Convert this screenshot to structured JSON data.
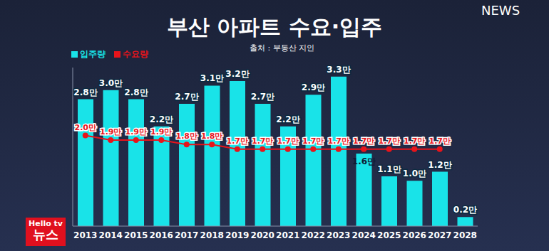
{
  "chart_data": {
    "type": "bar",
    "title": "부산 아파트 수요·입주",
    "subtitle": "출처 : 부동산 지인",
    "categories": [
      "2013",
      "2014",
      "2015",
      "2016",
      "2017",
      "2018",
      "2019",
      "2020",
      "2021",
      "2022",
      "2023",
      "2024",
      "2025",
      "2026",
      "2027",
      "2028"
    ],
    "series": [
      {
        "name": "입주량",
        "type": "bar",
        "color": "#19e3e8",
        "values": [
          2.8,
          3.0,
          2.8,
          2.2,
          2.7,
          3.1,
          3.2,
          2.7,
          2.2,
          2.9,
          3.3,
          1.6,
          1.1,
          1.0,
          1.2,
          0.2
        ],
        "value_labels": [
          "2.8만",
          "3.0만",
          "2.8만",
          "2.2만",
          "2.7만",
          "3.1만",
          "3.2만",
          "2.7만",
          "2.2만",
          "2.9만",
          "3.3만",
          "1.6만",
          "1.1만",
          "1.0만",
          "1.2만",
          "0.2만"
        ]
      },
      {
        "name": "수요량",
        "type": "line",
        "color": "#e8141b",
        "marker": "circle",
        "line_style": "solid",
        "values": [
          2.0,
          1.9,
          1.9,
          1.9,
          1.8,
          1.8,
          1.7,
          1.7,
          1.7,
          1.7,
          1.7,
          1.7,
          1.7,
          1.7,
          1.7,
          null
        ],
        "value_labels": [
          "2.0만",
          "1.9만",
          "1.9만",
          "1.9만",
          "1.8만",
          "1.8만",
          "1.7만",
          "1.7만",
          "1.7만",
          "1.7만",
          "1.7만",
          "1.7만",
          "1.7만",
          "1.7만",
          "1.7만",
          null
        ]
      }
    ],
    "ylim": [
      0,
      3.5
    ],
    "tick_labels": "x",
    "data_labels": true,
    "legend": "top-left",
    "grid": false,
    "annotations": [
      "NEWS",
      "Hello tv",
      "뉴스"
    ]
  }
}
